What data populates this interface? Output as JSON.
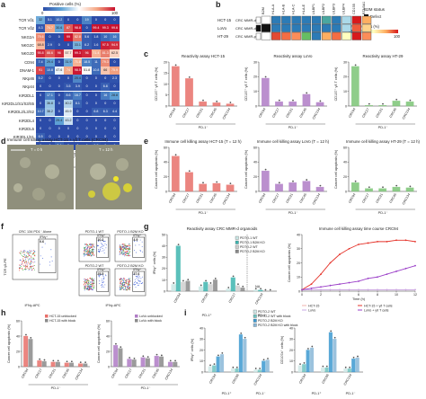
{
  "panels": {
    "a": "a",
    "b": "b",
    "c": "c",
    "d": "d",
    "e": "e",
    "f": "f",
    "g": "g",
    "h": "h",
    "i": "i"
  },
  "heatmap": {
    "legend_title": "Positive cells (%)",
    "legend_ticks": [
      "0",
      "100"
    ],
    "rows": [
      "TCR Vδ1",
      "TCR Vδ2",
      "NKG2A",
      "NKG2C",
      "NKG2D",
      "CD94",
      "DNAM-1",
      "NKp46",
      "NKp44",
      "KIR2DL1",
      "KIR2DL1/S1/S3/S5",
      "KIR2DL2/L3/S2",
      "KIR2DL4",
      "KIR2DL5",
      "KIR3DL1/S1",
      "KIR3DL2"
    ],
    "cols": [
      "CRC44",
      "CRC94",
      "CRC96",
      "CRC134",
      "CRC164",
      "CRC17",
      "CRC21",
      "CRC45",
      "CRC134"
    ],
    "group_labels": [
      "PD-1⁺",
      "PD-1⁻"
    ],
    "values": [
      [
        32,
        5.1,
        10.2,
        0,
        0,
        19,
        0,
        0,
        0
      ],
      [
        4.3,
        74.7,
        30.6,
        87,
        98.8,
        0,
        99.4,
        99.3,
        99.6
      ],
      [
        79.6,
        0,
        0,
        99,
        82.8,
        5.6,
        1.8,
        10,
        16
      ],
      [
        68.8,
        2.9,
        0,
        0,
        33.1,
        6.2,
        1.6,
        97.5,
        94.9
      ],
      [
        95.8,
        88.6,
        96,
        57.7,
        99.3,
        96,
        71.4,
        81.3,
        62.5
      ],
      [
        7.4,
        29.4,
        0,
        31.9,
        71.8,
        18.5,
        11,
        79.3,
        0
      ],
      [
        91,
        10.8,
        47.6,
        74,
        98.5,
        51.8,
        10.8,
        66,
        75.9
      ],
      [
        5.2,
        0,
        0,
        0,
        20.4,
        0,
        0,
        0,
        2.3
      ],
      [
        0,
        0,
        0,
        3.5,
        3.9,
        0,
        0,
        6.8,
        0
      ],
      [
        0,
        17.1,
        0,
        8.6,
        16.7,
        0,
        0,
        16,
        28.8
      ],
      [
        0,
        36.8,
        0,
        40.2,
        8.1,
        0,
        0,
        0,
        0
      ],
      [
        10.7,
        38.2,
        0,
        45.9,
        0,
        0,
        6.8,
        6.3,
        4.4
      ],
      [
        0,
        0,
        29.4,
        43.2,
        0,
        0,
        0,
        0,
        0
      ],
      [
        0,
        0,
        0,
        0,
        0,
        0,
        0,
        0,
        0
      ],
      [
        6.5,
        0,
        0,
        0,
        0,
        0,
        0,
        0,
        0
      ],
      [
        0,
        0,
        7.4,
        0,
        0,
        0,
        2.7,
        0,
        0
      ]
    ]
  },
  "b2m": {
    "legend_title": "B2M status",
    "defect_label": "Defect",
    "pos_title": "Positive cells (%)",
    "pos_ticks": [
      "0",
      "100"
    ],
    "rows": [
      "HCT-15",
      "LoVo",
      "HT-29"
    ],
    "row_status": [
      "CRC MMR-d",
      "CRC MMR-d",
      "CRC MMR-p"
    ],
    "cols": [
      "B2M",
      "HLA-A",
      "HLA-B",
      "HLA-C",
      "HLA-E",
      "ULBP1",
      "ULBP2",
      "ULBP3",
      "ULBP4",
      "CD155",
      "BTN3A1"
    ],
    "colors": {
      "HCT-15": [
        "#ffffff",
        "#2c7bb6",
        "#2c7bb6",
        "#2c7bb6",
        "#2c7bb6",
        "#2c7bb6",
        "#4aa7a0",
        "#2c7bb6",
        "#abd9e9",
        "#d7191c",
        "#fdae61"
      ],
      "LoVo": [
        "#111111",
        "#2c7bb6",
        "#2c7bb6",
        "#2c7bb6",
        "#2c7bb6",
        "#2c7bb6",
        "#2c7bb6",
        "#2c7bb6",
        "#abd9e9",
        "#ee5a3c",
        "#fdd28a"
      ],
      "HT-29": [
        "#ffffff",
        "#e34a33",
        "#f46d43",
        "#fc8d59",
        "#66bd63",
        "#2c7bb6",
        "#fdae61",
        "#f46d43",
        "#ffffbf",
        "#d7191c",
        "#fc8d59"
      ]
    }
  },
  "c_reactivity": [
    {
      "title": "Reactivity assay HCT-15",
      "ylabel": "CD137⁺ γδ T cells (%)",
      "ylim": [
        0,
        20
      ],
      "yticks": [
        "0",
        "5",
        "10",
        "15",
        "20"
      ],
      "color": "#e8706a",
      "cats": [
        "CRC94",
        "CRC17",
        "CRC21",
        "CRC45",
        "CRC134"
      ],
      "values": [
        18,
        12.5,
        2,
        1.5,
        1
      ],
      "group": "PD-1⁻"
    },
    {
      "title": "Reactivity assay LoVo",
      "ylabel": "CD137⁺ γδ T cells (%)",
      "ylim": [
        0,
        30
      ],
      "yticks": [
        "0",
        "10",
        "20",
        "30"
      ],
      "color": "#b07cc6",
      "cats": [
        "CRC94",
        "CRC17",
        "CRC21",
        "CRC45",
        "CRC134"
      ],
      "values": [
        19,
        3,
        3,
        8,
        2.5
      ],
      "group": "PD-1⁻"
    },
    {
      "title": "Reactivity assay HT-29",
      "ylabel": "CD137⁺ γδ T cells (%)",
      "ylim": [
        0,
        30
      ],
      "yticks": [
        "0",
        "10",
        "20",
        "30"
      ],
      "color": "#7cc576",
      "cats": [
        "CRC94",
        "CRC17",
        "CRC21",
        "CRC45",
        "CRC134"
      ],
      "values": [
        27,
        0.5,
        0.5,
        3.5,
        3
      ],
      "group": "PD-1⁻"
    }
  ],
  "d": {
    "title": "Immune cell killing assay HCT-15 + γδ T cells (CRC94)",
    "t0": "T = 0 h",
    "t12": "T = 12 h"
  },
  "e_killing": [
    {
      "title": "Immune cell killing assay HCT-15 (T = 12 h)",
      "ylabel": "Cancer cell apoptosis (%)",
      "ylim": [
        0,
        60
      ],
      "yticks": [
        "0",
        "20",
        "40",
        "60"
      ],
      "color": "#e8706a",
      "cats": [
        "CRC94",
        "CRC17",
        "CRC21",
        "CRC45",
        "CRC134"
      ],
      "values": [
        48,
        26,
        10,
        11,
        9
      ],
      "group": "PD-1⁻"
    },
    {
      "title": "Immune cell killing assay LoVo (T = 12 h)",
      "ylabel": "Cancer cell apoptosis (%)",
      "ylim": [
        0,
        60
      ],
      "yticks": [
        "0",
        "20",
        "40",
        "60"
      ],
      "color": "#b07cc6",
      "cats": [
        "CRC94",
        "CRC17",
        "CRC21",
        "CRC45",
        "CRC134"
      ],
      "values": [
        28,
        10,
        12,
        14,
        6
      ],
      "group": "PD-1⁻"
    },
    {
      "title": "Immune cell killing assay HT-29 (T = 12 h)",
      "ylabel": "Cancer cell apoptosis (%)",
      "ylim": [
        0,
        60
      ],
      "yticks": [
        "0",
        "20",
        "40",
        "60"
      ],
      "color": "#7cc576",
      "cats": [
        "CRC94",
        "CRC17",
        "CRC21",
        "CRC45",
        "CRC134"
      ],
      "values": [
        12,
        4,
        4,
        6,
        5
      ],
      "group": "PD-1⁻"
    }
  ],
  "f": {
    "alone_title": "CRC 134 PD1⁻ Alone",
    "titles": [
      "PDTO-1 WT",
      "PDTO-1 B2M KO",
      "PDTO-2 WT",
      "PDTO-2 B2M KO"
    ],
    "gates": [
      "IFNγ⁺",
      "IFNγ⁺",
      "IFNγ⁺",
      "IFNγ⁺",
      "IFNγ⁺"
    ],
    "pcts": [
      "0.6",
      "10.2",
      "4.9",
      "25.5",
      "37.6"
    ],
    "xlabel": "IFNγ-APC",
    "ylabel": "TCR γδ-PE"
  },
  "g_bar": {
    "title": "Reactivity assay CRC MMR-d organoids",
    "ylabel": "IFNγ⁺ cells (%)",
    "ylim": [
      0,
      50
    ],
    "yticks": [
      "0",
      "10",
      "20",
      "30",
      "40",
      "50"
    ],
    "legend": [
      "PDTO-1 WT",
      "PDTO-1 B2M KO",
      "PDTO-2 WT",
      "PDTO-2 B2M KO"
    ],
    "colors": [
      "#c9e7e5",
      "#3fb6b0",
      "#cfcfcf",
      "#8a8a8a"
    ],
    "cats": [
      "CRC94",
      "CRC96",
      "CRC17",
      "CRC134"
    ],
    "cat_values": [
      [
        6,
        40,
        8,
        9
      ],
      [
        4,
        8,
        6,
        10
      ],
      [
        2,
        12,
        5,
        3
      ],
      [
        1,
        1,
        0,
        0
      ]
    ],
    "group_labels": [
      "PD-1⁺",
      "PD-1⁻"
    ],
    "na": "NA"
  },
  "g_line": {
    "title": "Immune cell killing assay time course CRC94",
    "ylabel": "Cancer cell apoptosis (%)",
    "xlabel": "Time (h)",
    "ylim": [
      0,
      40
    ],
    "yticks": [
      "0",
      "10",
      "20",
      "30",
      "40"
    ],
    "xticks": [
      "0",
      "2",
      "4",
      "6",
      "8",
      "10",
      "12"
    ],
    "legend": [
      "HCT-15",
      "HCT-15 + γδ T cells",
      "LoVo",
      "LoVo + γδ T cells"
    ],
    "colors": [
      "#f2b3ae",
      "#e5332a",
      "#c9a9e6",
      "#9b3fc8"
    ],
    "x": [
      0,
      1,
      2,
      3,
      4,
      5,
      6,
      7,
      8,
      9,
      10,
      11,
      12
    ],
    "series": [
      [
        1,
        1,
        1,
        1,
        1,
        1,
        1,
        1,
        1,
        1,
        1,
        1,
        1
      ],
      [
        1,
        5,
        12,
        20,
        26,
        30,
        33,
        34,
        35,
        35,
        36,
        36,
        35
      ],
      [
        1,
        1,
        1,
        1,
        1,
        1,
        1,
        1,
        1,
        1,
        1,
        1,
        1
      ],
      [
        1,
        2,
        3,
        4,
        5,
        6,
        7,
        9,
        10,
        12,
        14,
        16,
        18
      ]
    ]
  },
  "h": {
    "ylabel": "Cancer cell apoptosis (%)",
    "ylim": [
      0,
      60
    ],
    "yticks": [
      "0",
      "20",
      "40",
      "60"
    ],
    "group": "PD-1⁻",
    "charts": [
      {
        "legend": [
          "HCT-15 unblocked",
          "HCT-15 with block"
        ],
        "colors": [
          "#e8706a",
          "#8a8a8a"
        ],
        "cats": [
          "CRC94",
          "CRC17",
          "CRC21",
          "CRC45",
          "CRC134"
        ],
        "values": [
          [
            40,
            36
          ],
          [
            8,
            7
          ],
          [
            6,
            6
          ],
          [
            5,
            5
          ],
          [
            4,
            4
          ]
        ]
      },
      {
        "legend": [
          "LoVo unblocked",
          "LoVo with block"
        ],
        "colors": [
          "#b07cc6",
          "#8a8a8a"
        ],
        "cats": [
          "CRC94",
          "CRC17",
          "CRC21",
          "CRC45",
          "CRC134"
        ],
        "values": [
          [
            28,
            24
          ],
          [
            10,
            9
          ],
          [
            12,
            11
          ],
          [
            14,
            13
          ],
          [
            6,
            6
          ]
        ]
      }
    ]
  },
  "i": {
    "legend": [
      "PDTO-2 WT",
      "PDTO-2 WT with block",
      "PDTO-2 B2M KO",
      "PDTO-2 B2M KO with block"
    ],
    "colors": [
      "#cfe8e7",
      "#6fc3bf",
      "#3d9ad1",
      "#8ab8d8"
    ],
    "charts": [
      {
        "ylabel": "IFNγ⁺ cells (%)",
        "ylim": [
          0,
          40
        ],
        "yticks": [
          "0",
          "10",
          "20",
          "30",
          "40"
        ],
        "cats": [
          "CRC94",
          "CRC96",
          "CRC134"
        ],
        "values": [
          [
            5,
            6,
            14,
            16
          ],
          [
            3,
            3,
            34,
            30
          ],
          [
            2,
            2,
            10,
            11
          ]
        ]
      },
      {
        "ylabel": "CD107a⁺ cells (%)",
        "ylim": [
          0,
          40
        ],
        "yticks": [
          "0",
          "10",
          "20",
          "30",
          "40"
        ],
        "cats": [
          "CRC94",
          "CRC96",
          "CRC134"
        ],
        "values": [
          [
            6,
            7,
            20,
            22
          ],
          [
            4,
            4,
            36,
            30
          ],
          [
            3,
            3,
            12,
            13
          ]
        ]
      }
    ],
    "group_labels": [
      "PD-1⁺",
      "PD-1⁻"
    ]
  }
}
